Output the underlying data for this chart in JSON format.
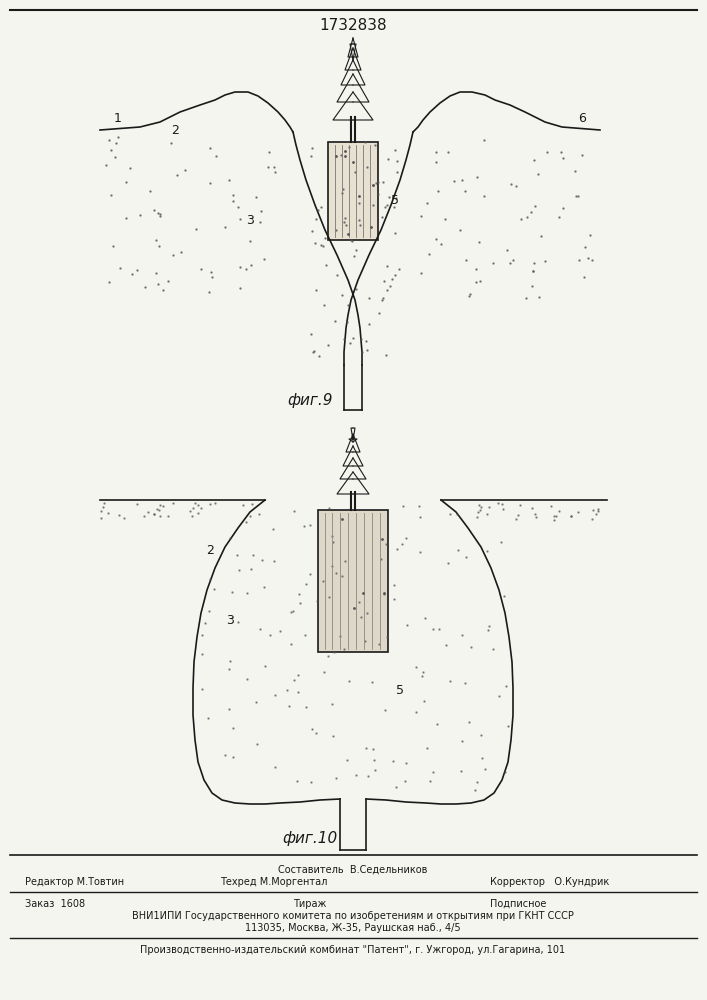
{
  "title": "1732838",
  "fig9_label": "фиг.9",
  "fig10_label": "фиг.10",
  "footer_line1_left": "Редактор М.Товтин",
  "footer_line1_mid1": "Составитель  В.Седельников",
  "footer_line1_mid2": "Техред М.Моргентал",
  "footer_line1_right1": "Корректор   О.Кундрик",
  "footer_line2_left": "Заказ  1608",
  "footer_line2_mid": "Тираж",
  "footer_line2_right": "Подписное",
  "footer_line3": "ВНИ1ИПИ Государственного комитета по изобретениям и открытиям при ГКНТ СССР",
  "footer_line4": "113035, Москва, Ж-35, Раушская наб., 4/5",
  "footer_line5": "Производственно-издательский комбинат \"Патент\", г. Ужгород, ул.Гагарина, 101",
  "bg_color": "#f5f5f0",
  "line_color": "#1a1a1a",
  "label_1": "1",
  "label_2": "2",
  "label_3": "3",
  "label_5": "5",
  "label_6": "6"
}
